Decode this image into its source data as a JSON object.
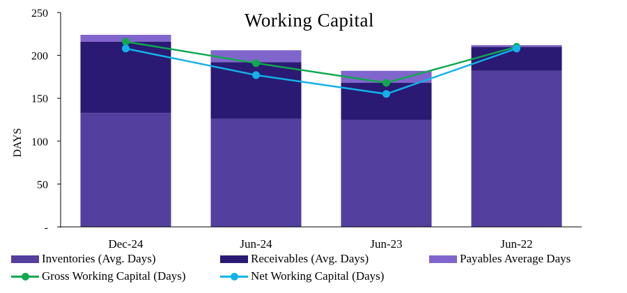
{
  "chart_data": {
    "type": "bar",
    "title": "Working Capital",
    "xlabel": "",
    "ylabel": "DAYS",
    "ylim": [
      0,
      250
    ],
    "yticks": [
      "-",
      "50",
      "100",
      "150",
      "200",
      "250"
    ],
    "categories": [
      "Dec-24",
      "Jun-24",
      "Jun-23",
      "Jun-22"
    ],
    "stacked_series": [
      {
        "name": "Inventories (Avg. Days)",
        "color": "#523F9E",
        "values": [
          133,
          126,
          125,
          182
        ]
      },
      {
        "name": "Receivables (Avg. Days)",
        "color": "#2A1A73",
        "values": [
          83,
          66,
          43,
          28
        ]
      },
      {
        "name": "Payables Average Days",
        "color": "#8066CC",
        "values": [
          8,
          14,
          14,
          2
        ]
      }
    ],
    "line_series": [
      {
        "name": "Gross Working Capital (Days)",
        "color": "#10A84F",
        "values": [
          216,
          191,
          168,
          210
        ]
      },
      {
        "name": "Net Working Capital (Days)",
        "color": "#12B2E8",
        "values": [
          208,
          177,
          155,
          208
        ]
      }
    ],
    "grid": false,
    "legend_position": "bottom"
  }
}
